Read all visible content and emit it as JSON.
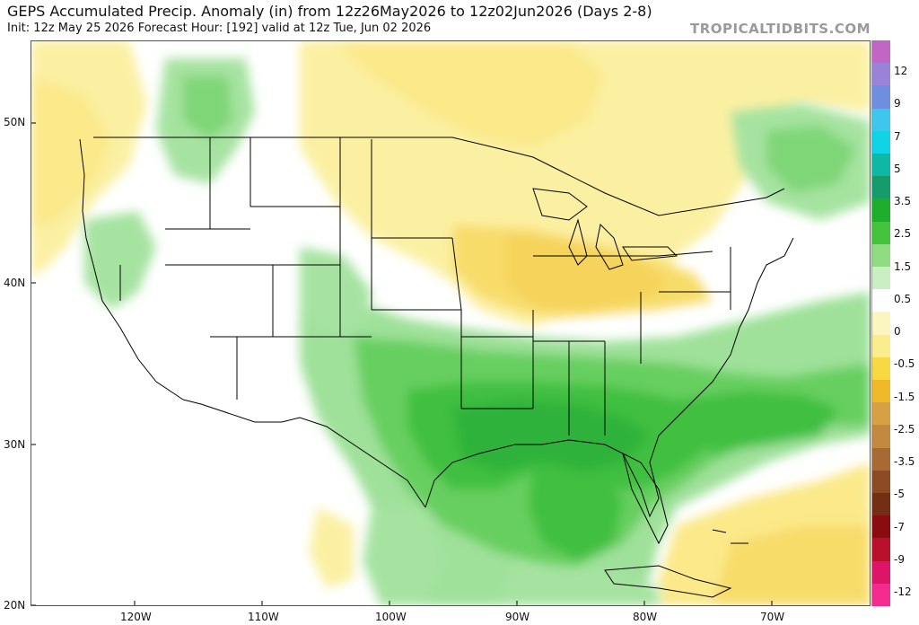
{
  "header": {
    "title": "GEPS Accumulated Precip. Anomaly (in) from 12z26May2026 to 12z02Jun2026 (Days 2-8)",
    "subtitle": "Init: 12z May 25 2026   Forecast Hour: [192]   valid at 12z Tue, Jun 02 2026",
    "brand": "TROPICALTIDBITS.COM"
  },
  "axes": {
    "lat_labels": [
      "50N",
      "40N",
      "30N",
      "20N"
    ],
    "lon_labels": [
      "120W",
      "110W",
      "100W",
      "90W",
      "80W",
      "70W"
    ]
  },
  "colorbar": {
    "labels": [
      "12",
      "9",
      "7",
      "5",
      "3.5",
      "2.5",
      "1.5",
      "0.5",
      "0",
      "-0.5",
      "-1.5",
      "-2.5",
      "-3.5",
      "-5",
      "-7",
      "-9",
      "-12"
    ],
    "colors": [
      "#c266c6",
      "#9a82d8",
      "#6f8ee0",
      "#3fc6ee",
      "#10d4e6",
      "#0fb7a5",
      "#159c6a",
      "#1ead2c",
      "#45c33c",
      "#8fdc82",
      "#c9efc2",
      "#ffffff",
      "#fbf6c0",
      "#fbec8e",
      "#f8d944",
      "#f0b929",
      "#d7a045",
      "#c48940",
      "#a86a34",
      "#8c4b24",
      "#732e15",
      "#8a0c10",
      "#b80f2a",
      "#de1466",
      "#f52a8f"
    ]
  },
  "map_features": {
    "regions_icon": "precip-anomaly-shading",
    "borders_icon": "state-country-borders"
  }
}
